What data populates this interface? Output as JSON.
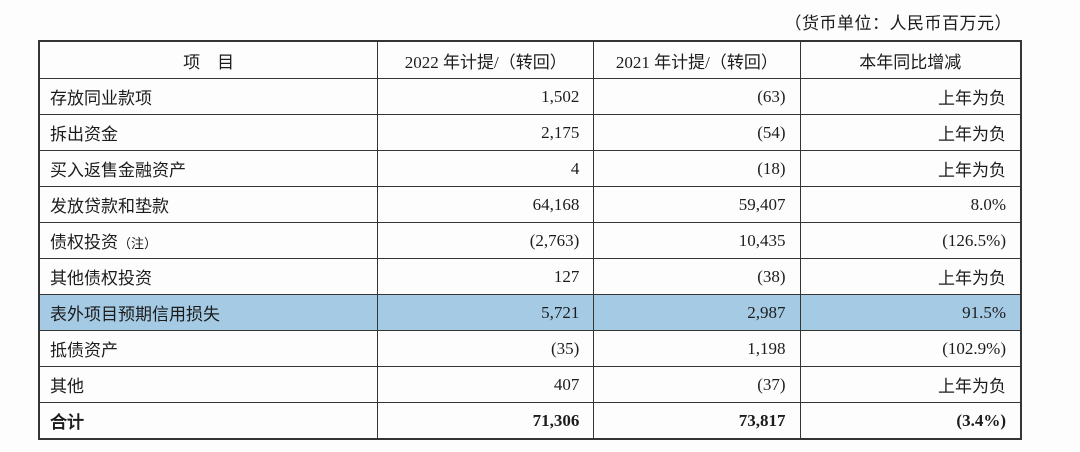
{
  "caption": "（货币单位：人民币百万元）",
  "colors": {
    "highlight": "#a4cae4",
    "border": "#353535",
    "text": "#1c1c1c"
  },
  "table": {
    "headers": [
      "项　目",
      "2022 年计提/（转回）",
      "2021 年计提/（转回）",
      "本年同比增减"
    ],
    "rows": [
      {
        "item": "存放同业款项",
        "note": "",
        "y2022": "1,502",
        "y2021": "(63)",
        "yoy": "上年为负",
        "highlight": false,
        "bold": false
      },
      {
        "item": "拆出资金",
        "note": "",
        "y2022": "2,175",
        "y2021": "(54)",
        "yoy": "上年为负",
        "highlight": false,
        "bold": false
      },
      {
        "item": "买入返售金融资产",
        "note": "",
        "y2022": "4",
        "y2021": "(18)",
        "yoy": "上年为负",
        "highlight": false,
        "bold": false
      },
      {
        "item": "发放贷款和垫款",
        "note": "",
        "y2022": "64,168",
        "y2021": "59,407",
        "yoy": "8.0%",
        "highlight": false,
        "bold": false
      },
      {
        "item": "债权投资",
        "note": "（注）",
        "y2022": "(2,763)",
        "y2021": "10,435",
        "yoy": "(126.5%)",
        "highlight": false,
        "bold": false
      },
      {
        "item": "其他债权投资",
        "note": "",
        "y2022": "127",
        "y2021": "(38)",
        "yoy": "上年为负",
        "highlight": false,
        "bold": false
      },
      {
        "item": "表外项目预期信用损失",
        "note": "",
        "y2022": "5,721",
        "y2021": "2,987",
        "yoy": "91.5%",
        "highlight": true,
        "bold": false
      },
      {
        "item": "抵债资产",
        "note": "",
        "y2022": "(35)",
        "y2021": "1,198",
        "yoy": "(102.9%)",
        "highlight": false,
        "bold": false
      },
      {
        "item": "其他",
        "note": "",
        "y2022": "407",
        "y2021": "(37)",
        "yoy": "上年为负",
        "highlight": false,
        "bold": false
      },
      {
        "item": "合计",
        "note": "",
        "y2022": "71,306",
        "y2021": "73,817",
        "yoy": "(3.4%)",
        "highlight": false,
        "bold": true
      }
    ]
  }
}
